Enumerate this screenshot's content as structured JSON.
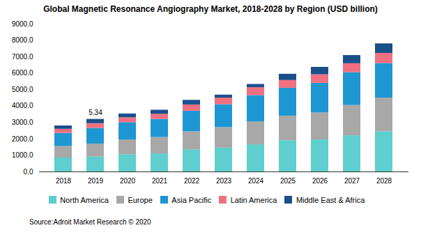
{
  "chart_data": {
    "type": "bar",
    "stacked": true,
    "title": "Global Magnetic Resonance Angiography Market, 2018-2028 by Region (USD billion)",
    "caption": "Source:Adroit Market Research © 2020",
    "categories": [
      "2018",
      "2019",
      "2020",
      "2021",
      "2022",
      "2023",
      "2024",
      "2025",
      "2026",
      "2027",
      "2028"
    ],
    "series": [
      {
        "name": "North America",
        "color": "#5ecece",
        "values": [
          850,
          900,
          1050,
          1100,
          1350,
          1450,
          1650,
          1900,
          1950,
          2200,
          2450
        ]
      },
      {
        "name": "Europe",
        "color": "#a8a8a8",
        "values": [
          700,
          800,
          900,
          1000,
          1100,
          1250,
          1400,
          1500,
          1650,
          1850,
          2050
        ]
      },
      {
        "name": "Asia Pacific",
        "color": "#1e96d2",
        "values": [
          800,
          950,
          1050,
          1100,
          1250,
          1400,
          1600,
          1700,
          1800,
          2000,
          2100
        ]
      },
      {
        "name": "Latin America",
        "color": "#f07080",
        "values": [
          250,
          290,
          300,
          310,
          380,
          400,
          480,
          470,
          520,
          540,
          620
        ]
      },
      {
        "name": "Middle East & Africa",
        "color": "#1a4f8a",
        "values": [
          200,
          260,
          230,
          250,
          280,
          180,
          200,
          380,
          450,
          500,
          580
        ]
      }
    ],
    "ylim": [
      0,
      9000
    ],
    "yticks": [
      {
        "value": 0,
        "label": "0.0"
      },
      {
        "value": 1000,
        "label": "1000.0"
      },
      {
        "value": 2000,
        "label": "2000.0"
      },
      {
        "value": 3000,
        "label": "3000.0"
      },
      {
        "value": 4000,
        "label": "4000.0"
      },
      {
        "value": 5000,
        "label": "5000.0"
      },
      {
        "value": 6000,
        "label": "6000.0"
      },
      {
        "value": 7000,
        "label": "7000.0"
      },
      {
        "value": 8000,
        "label": "8000.0"
      },
      {
        "value": 9000,
        "label": "9000.0"
      }
    ],
    "grid": false,
    "legend": "bottom",
    "annotations": [
      {
        "text": "5.34",
        "category": "2019"
      }
    ]
  }
}
